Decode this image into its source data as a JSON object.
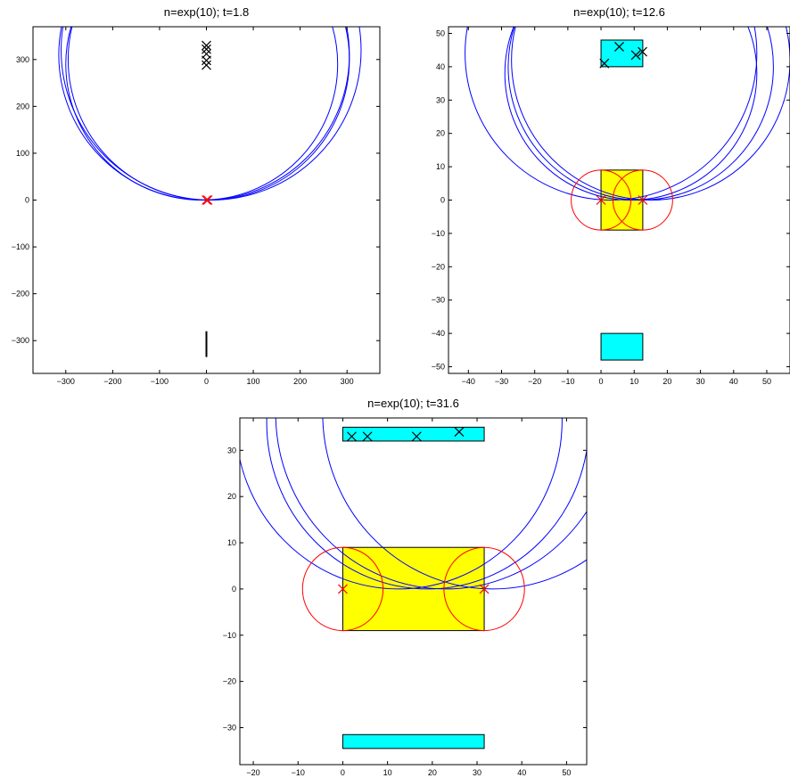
{
  "colors": {
    "circle_blue": "#0000ff",
    "circle_red": "#ff0000",
    "rect_yellow": "#ffff00",
    "rect_cyan": "#00ffff",
    "marker_black": "#000000",
    "marker_red": "#ff0000"
  },
  "chart_data": [
    {
      "type": "scatter",
      "title": "n=exp(10); t=1.8",
      "xlabel": "",
      "ylabel": "",
      "xlim": [
        -370,
        370
      ],
      "ylim": [
        -370,
        370
      ],
      "xticks": [
        -300,
        -200,
        -100,
        0,
        100,
        200,
        300
      ],
      "yticks": [
        -300,
        -200,
        -100,
        0,
        100,
        200,
        300
      ],
      "xtick_labels": [
        "−300",
        "−200",
        "−100",
        "0",
        "100",
        "200",
        "300"
      ],
      "ytick_labels": [
        "−300",
        "−200",
        "−100",
        "0",
        "100",
        "200",
        "300"
      ],
      "grid": false,
      "rects": [],
      "circles": [
        {
          "cx": -10,
          "cy": 290,
          "r": 290,
          "color": "blue"
        },
        {
          "cx": 5,
          "cy": 300,
          "r": 300,
          "color": "blue"
        },
        {
          "cx": -5,
          "cy": 310,
          "r": 310,
          "color": "blue"
        },
        {
          "cx": 10,
          "cy": 320,
          "r": 320,
          "color": "blue"
        }
      ],
      "segments": [
        {
          "x1": 0,
          "y1": -280,
          "x2": 0,
          "y2": -335,
          "color": "black"
        }
      ],
      "markers": [
        {
          "x": 0,
          "y": 288,
          "color": "black"
        },
        {
          "x": 0,
          "y": 298,
          "color": "black"
        },
        {
          "x": 0,
          "y": 312,
          "color": "black"
        },
        {
          "x": 0,
          "y": 322,
          "color": "black"
        },
        {
          "x": 0,
          "y": 330,
          "color": "black"
        },
        {
          "x": 0,
          "y": 0,
          "color": "red"
        },
        {
          "x": 3,
          "y": 0,
          "color": "red"
        }
      ]
    },
    {
      "type": "scatter",
      "title": "n=exp(10); t=12.6",
      "xlabel": "",
      "ylabel": "",
      "xlim": [
        -46,
        57
      ],
      "ylim": [
        -52,
        52
      ],
      "xticks": [
        -40,
        -30,
        -20,
        -10,
        0,
        10,
        20,
        30,
        40,
        50
      ],
      "yticks": [
        -50,
        -40,
        -30,
        -20,
        -10,
        0,
        10,
        20,
        30,
        40,
        50
      ],
      "xtick_labels": [
        "−40",
        "−30",
        "−20",
        "−10",
        "0",
        "10",
        "20",
        "30",
        "40",
        "50"
      ],
      "ytick_labels": [
        "−50",
        "−40",
        "−30",
        "−20",
        "−10",
        "0",
        "10",
        "20",
        "30",
        "40",
        "50"
      ],
      "grid": false,
      "rects": [
        {
          "x0": 0,
          "x1": 12.6,
          "y0": -9,
          "y1": 9,
          "color": "yellow"
        },
        {
          "x0": 0,
          "x1": 12.6,
          "y0": 40,
          "y1": 48,
          "color": "cyan"
        },
        {
          "x0": 0,
          "x1": 12.6,
          "y0": -48,
          "y1": -40,
          "color": "cyan"
        }
      ],
      "circles": [
        {
          "cx": 9,
          "cy": 38,
          "r": 38,
          "color": "blue"
        },
        {
          "cx": 12,
          "cy": 40,
          "r": 40,
          "color": "blue"
        },
        {
          "cx": 15,
          "cy": 42,
          "r": 42,
          "color": "blue"
        },
        {
          "cx": 3,
          "cy": 44,
          "r": 44,
          "color": "blue"
        },
        {
          "cx": 0,
          "cy": 0,
          "r": 9,
          "color": "red"
        },
        {
          "cx": 12.6,
          "cy": 0,
          "r": 9,
          "color": "red"
        }
      ],
      "segments": [],
      "markers": [
        {
          "x": 1,
          "y": 41,
          "color": "black"
        },
        {
          "x": 5.5,
          "y": 46,
          "color": "black"
        },
        {
          "x": 10.5,
          "y": 43.5,
          "color": "black"
        },
        {
          "x": 12.5,
          "y": 44.5,
          "color": "black"
        },
        {
          "x": 0,
          "y": 0,
          "color": "red"
        },
        {
          "x": 12.6,
          "y": 0,
          "color": "red"
        }
      ]
    },
    {
      "type": "scatter",
      "title": "n=exp(10); t=31.6",
      "xlabel": "",
      "ylabel": "",
      "xlim": [
        -23,
        54.5
      ],
      "ylim": [
        -38,
        37
      ],
      "xticks": [
        -20,
        -10,
        0,
        10,
        20,
        30,
        40,
        50
      ],
      "yticks": [
        -30,
        -20,
        -10,
        0,
        10,
        20,
        30
      ],
      "xtick_labels": [
        "−20",
        "−10",
        "0",
        "10",
        "20",
        "30",
        "40",
        "50"
      ],
      "ytick_labels": [
        "−30",
        "−20",
        "−10",
        "0",
        "10",
        "20",
        "30"
      ],
      "grid": false,
      "rects": [
        {
          "x0": 0,
          "x1": 31.6,
          "y0": -9,
          "y1": 9,
          "color": "yellow"
        },
        {
          "x0": 0,
          "x1": 31.6,
          "y0": 32,
          "y1": 35,
          "color": "cyan"
        },
        {
          "x0": 0,
          "x1": 31.6,
          "y0": -34.5,
          "y1": -31.5,
          "color": "cyan"
        }
      ],
      "circles": [
        {
          "cx": 19,
          "cy": 36,
          "r": 36,
          "color": "blue"
        },
        {
          "cx": 12.5,
          "cy": 36.5,
          "r": 36.5,
          "color": "blue"
        },
        {
          "cx": 23,
          "cy": 38,
          "r": 38,
          "color": "blue"
        },
        {
          "cx": 33.5,
          "cy": 38,
          "r": 38,
          "color": "blue"
        },
        {
          "cx": 0,
          "cy": 0,
          "r": 9,
          "color": "red"
        },
        {
          "cx": 31.6,
          "cy": 0,
          "r": 9,
          "color": "red"
        }
      ],
      "segments": [],
      "markers": [
        {
          "x": 2,
          "y": 33,
          "color": "black"
        },
        {
          "x": 5.5,
          "y": 33,
          "color": "black"
        },
        {
          "x": 16.5,
          "y": 33,
          "color": "black"
        },
        {
          "x": 26,
          "y": 34,
          "color": "black"
        },
        {
          "x": 0,
          "y": 0,
          "color": "red"
        },
        {
          "x": 31.6,
          "y": 0,
          "color": "red"
        }
      ]
    }
  ]
}
